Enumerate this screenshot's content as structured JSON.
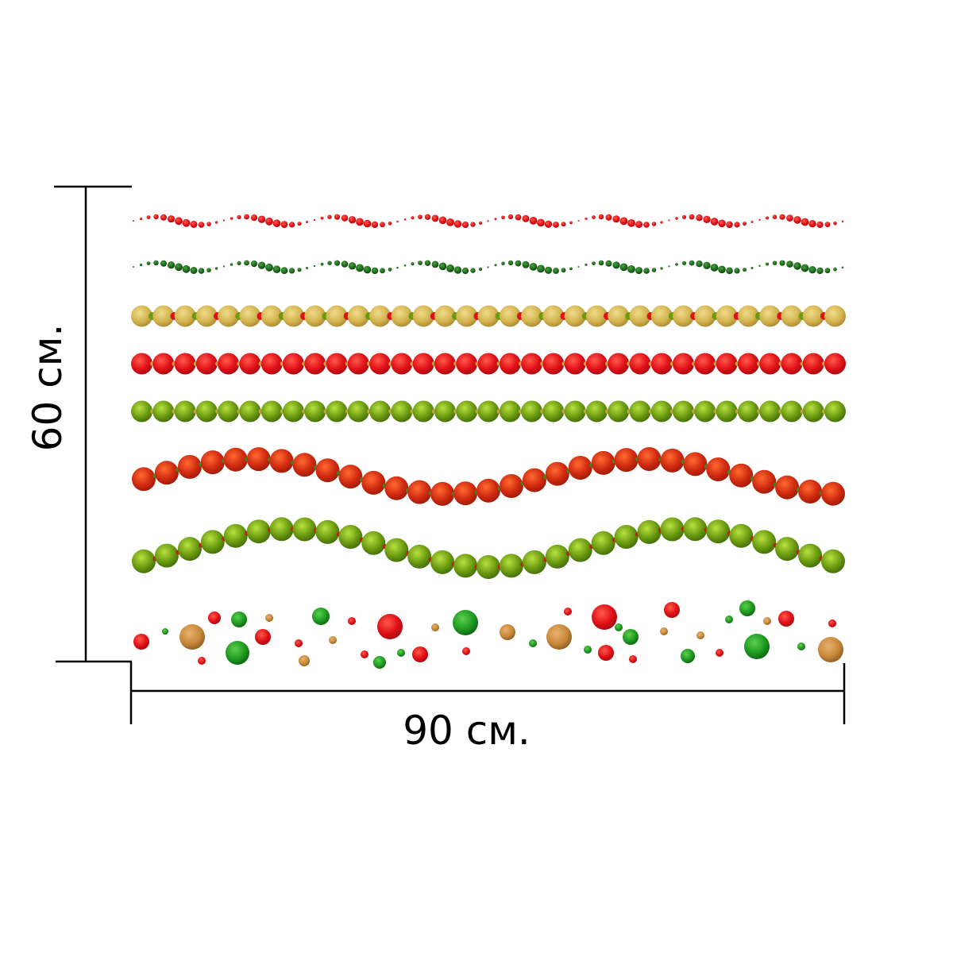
{
  "dimensions": {
    "width_label": "90 см.",
    "height_label": "60 см."
  },
  "colors": {
    "red": "#e01018",
    "dark_red": "#cf2a10",
    "green": "#6a9a10",
    "dark_green": "#1e6a1c",
    "bright_green": "#1f9a20",
    "gold": "#d4b450",
    "bronze": "#c8893a",
    "line": "#000000"
  },
  "garlands": [
    {
      "name": "red-dotted-wave-garland",
      "style": "dotted-wave",
      "color": "red"
    },
    {
      "name": "green-dotted-wave-garland",
      "style": "dotted-wave",
      "color": "dark_green"
    },
    {
      "name": "gold-bead-garland",
      "style": "straight-beads",
      "color": "gold"
    },
    {
      "name": "red-bead-garland",
      "style": "straight-beads",
      "color": "red"
    },
    {
      "name": "green-bead-garland",
      "style": "straight-beads",
      "color": "green"
    },
    {
      "name": "red-wavy-bead-garland",
      "style": "wavy-beads",
      "color": "dark_red"
    },
    {
      "name": "green-wavy-bead-garland",
      "style": "wavy-beads",
      "color": "green"
    }
  ],
  "confetti": {
    "name": "confetti-dots",
    "colors": [
      "red",
      "bright_green",
      "bronze"
    ]
  }
}
